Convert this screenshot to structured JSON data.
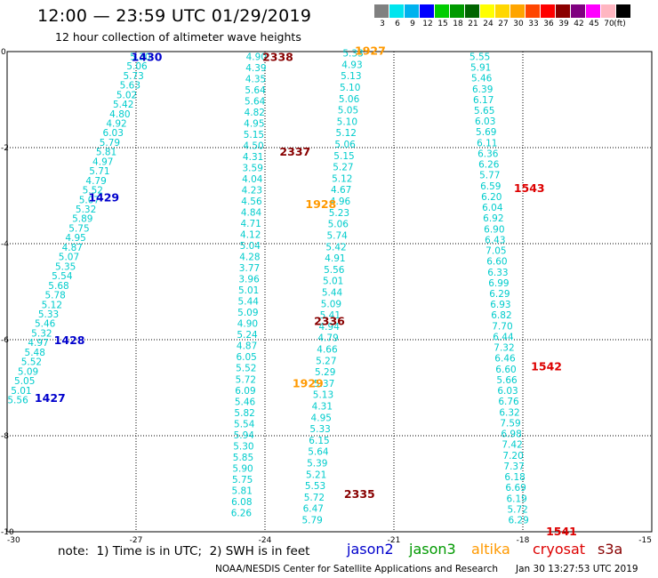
{
  "header": {
    "title": "12:00 — 23:59 UTC 01/29/2019",
    "subtitle": "12 hour collection of altimeter wave heights"
  },
  "colorbar": {
    "unit": "(ft)",
    "levels": [
      {
        "label": "3",
        "color": "#808080"
      },
      {
        "label": "6",
        "color": "#00e5ee"
      },
      {
        "label": "9",
        "color": "#00b2ee"
      },
      {
        "label": "12",
        "color": "#0000ff"
      },
      {
        "label": "15",
        "color": "#00cd00"
      },
      {
        "label": "18",
        "color": "#009a00"
      },
      {
        "label": "21",
        "color": "#006400"
      },
      {
        "label": "24",
        "color": "#ffff00"
      },
      {
        "label": "27",
        "color": "#ffd700"
      },
      {
        "label": "30",
        "color": "#ffa500"
      },
      {
        "label": "33",
        "color": "#ff4500"
      },
      {
        "label": "36",
        "color": "#ff0000"
      },
      {
        "label": "39",
        "color": "#8b0000"
      },
      {
        "label": "42",
        "color": "#800080"
      },
      {
        "label": "45",
        "color": "#ff00ff"
      },
      {
        "label": "70",
        "color": "#ffb6c1"
      },
      {
        "label": "",
        "color": "#000000"
      }
    ]
  },
  "footer": {
    "note": "note:  1) Time is in UTC;  2) SWH is in feet",
    "credit": "NOAA/NESDIS Center for Satellite Applications and Research",
    "stamp": "Jan 30 13:27:53 UTC 2019"
  },
  "chart_data": {
    "type": "scatter",
    "xlim": [
      -30,
      -15
    ],
    "ylim": [
      -10,
      0
    ],
    "xticks": [
      "-30",
      "-27",
      "-24",
      "-21",
      "-18",
      "-15"
    ],
    "yticks": [
      "0",
      "-2",
      "-4",
      "-6",
      "-8",
      "-10"
    ],
    "value_color": "#00cccc",
    "satellites": [
      {
        "name": "jason2",
        "color": "#0000cc"
      },
      {
        "name": "jason3",
        "color": "#009900"
      },
      {
        "name": "altika",
        "color": "#ff9900"
      },
      {
        "name": "cryosat",
        "color": "#dd0000"
      },
      {
        "name": "s3a",
        "color": "#880000"
      }
    ],
    "time_labels": [
      {
        "text": "1430",
        "sat": "jason2",
        "x": -26.75,
        "y": -0.1
      },
      {
        "text": "1429",
        "sat": "jason2",
        "x": -27.75,
        "y": -3.03
      },
      {
        "text": "1428",
        "sat": "jason2",
        "x": -28.55,
        "y": -6.0
      },
      {
        "text": "1427",
        "sat": "jason2",
        "x": -29.0,
        "y": -7.2
      },
      {
        "text": "2338",
        "sat": "s3a",
        "x": -23.7,
        "y": -0.1
      },
      {
        "text": "2337",
        "sat": "s3a",
        "x": -23.3,
        "y": -2.07
      },
      {
        "text": "2336",
        "sat": "s3a",
        "x": -22.5,
        "y": -5.6
      },
      {
        "text": "2335",
        "sat": "s3a",
        "x": -21.8,
        "y": -9.2
      },
      {
        "text": "1927",
        "sat": "altika",
        "x": -21.55,
        "y": 0.03
      },
      {
        "text": "1928",
        "sat": "altika",
        "x": -22.7,
        "y": -3.17
      },
      {
        "text": "1929",
        "sat": "altika",
        "x": -23.0,
        "y": -6.9
      },
      {
        "text": "1543",
        "sat": "cryosat",
        "x": -17.85,
        "y": -2.83
      },
      {
        "text": "1542",
        "sat": "cryosat",
        "x": -17.45,
        "y": -6.55
      },
      {
        "text": "1541",
        "sat": "cryosat",
        "x": -17.1,
        "y": -9.98
      }
    ],
    "tracks": [
      {
        "sat": "jason2",
        "x0": -26.9,
        "y0": -0.1,
        "x1": -29.75,
        "y1": -7.25,
        "values": [
          "5.30",
          "5.06",
          "5.73",
          "5.63",
          "5.02",
          "5.42",
          "4.80",
          "4.92",
          "6.03",
          "5.79",
          "5.81",
          "4.97",
          "5.71",
          "4.79",
          "5.52",
          "5.07",
          "5.32",
          "5.89",
          "5.75",
          "4.95",
          "4.87",
          "5.07",
          "5.35",
          "5.54",
          "5.68",
          "5.78",
          "5.12",
          "5.33",
          "5.46",
          "5.32",
          "4.97",
          "5.48",
          "5.52",
          "5.09",
          "5.05",
          "5.01",
          "5.56"
        ]
      },
      {
        "sat": "s3a",
        "x0": -24.2,
        "y0": -0.1,
        "x1": -24.55,
        "y1": -9.6,
        "values": [
          "4.90",
          "4.39",
          "4.35",
          "5.64",
          "5.64",
          "4.82",
          "4.95",
          "5.15",
          "4.50",
          "4.31",
          "3.59",
          "4.04",
          "4.23",
          "4.56",
          "4.84",
          "4.71",
          "4.12",
          "5.04",
          "4.28",
          "3.77",
          "3.96",
          "5.01",
          "5.44",
          "5.09",
          "4.90",
          "5.24",
          "4.87",
          "6.05",
          "5.52",
          "5.72",
          "6.09",
          "5.46",
          "5.82",
          "5.54",
          "5.94",
          "5.30",
          "5.85",
          "5.90",
          "5.75",
          "5.81",
          "6.08",
          "6.26"
        ]
      },
      {
        "sat": "altika",
        "x0": -21.95,
        "y0": -0.03,
        "x1": -22.9,
        "y1": -9.75,
        "values": [
          "5.33",
          "4.93",
          "5.13",
          "5.10",
          "5.06",
          "5.05",
          "5.10",
          "5.12",
          "5.06",
          "5.15",
          "5.27",
          "5.12",
          "4.67",
          "4.96",
          "5.23",
          "5.06",
          "5.74",
          "5.42",
          "4.91",
          "5.56",
          "5.01",
          "5.44",
          "5.09",
          "5.41",
          "4.94",
          "4.79",
          "4.66",
          "5.27",
          "5.29",
          "5.37",
          "5.13",
          "4.31",
          "4.95",
          "5.33",
          "6.15",
          "5.64",
          "5.39",
          "5.21",
          "5.53",
          "5.72",
          "6.47",
          "5.79"
        ]
      },
      {
        "sat": "cryosat",
        "x0": -19.0,
        "y0": -0.1,
        "x1": -18.1,
        "y1": -9.75,
        "values": [
          "5.55",
          "5.91",
          "5.46",
          "6.39",
          "6.17",
          "5.65",
          "6.03",
          "5.69",
          "6.11",
          "6.36",
          "6.26",
          "5.77",
          "6.59",
          "6.20",
          "6.04",
          "6.92",
          "6.90",
          "6.43",
          "7.05",
          "6.60",
          "6.33",
          "6.99",
          "6.29",
          "6.93",
          "6.82",
          "7.70",
          "6.44",
          "7.32",
          "6.46",
          "6.60",
          "5.66",
          "6.03",
          "6.76",
          "6.32",
          "7.59",
          "6.98",
          "7.42",
          "7.20",
          "7.37",
          "6.18",
          "6.69",
          "6.19",
          "5.72",
          "6.29"
        ]
      }
    ]
  }
}
